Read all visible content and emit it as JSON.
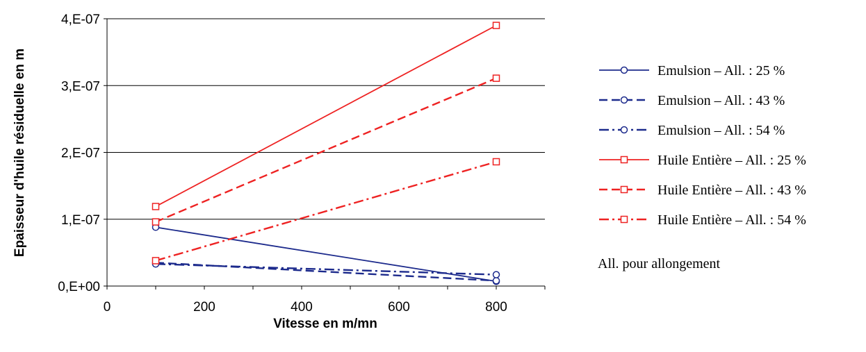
{
  "chart_data": {
    "type": "line",
    "xlabel": "Vitesse en m/mn",
    "ylabel": "Epaisseur d'huile résiduelle en m",
    "xlim": [
      0,
      900
    ],
    "ylim": [
      0,
      4e-07
    ],
    "x_ticks": [
      0,
      200,
      400,
      600,
      800
    ],
    "x_tick_labels": [
      "0",
      "200",
      "400",
      "600",
      "800"
    ],
    "y_ticks": [
      0,
      1e-07,
      2e-07,
      3e-07,
      4e-07
    ],
    "y_tick_labels": [
      "0,E+00",
      "1,E-07",
      "2,E-07",
      "3,E-07",
      "4,E-07"
    ],
    "grid": "horizontal",
    "legend_position": "right",
    "series": [
      {
        "name": "Emulsion – All. : 25 %",
        "x": [
          100,
          800
        ],
        "y": [
          8.8e-08,
          7e-09
        ],
        "color": "#1c2a8c",
        "dash": "solid",
        "marker": "circle"
      },
      {
        "name": "Emulsion – All. : 43 %",
        "x": [
          100,
          800
        ],
        "y": [
          3.5e-08,
          8e-09
        ],
        "color": "#1c2a8c",
        "dash": "dashed",
        "marker": "circle"
      },
      {
        "name": "Emulsion – All. : 54 %",
        "x": [
          100,
          800
        ],
        "y": [
          3.3e-08,
          1.7e-08
        ],
        "color": "#1c2a8c",
        "dash": "dashdot",
        "marker": "circle"
      },
      {
        "name": "Huile Entière – All. : 25 %",
        "x": [
          100,
          800
        ],
        "y": [
          1.19e-07,
          3.9e-07
        ],
        "color": "#ee2222",
        "dash": "solid",
        "marker": "square"
      },
      {
        "name": "Huile Entière – All. : 43 %",
        "x": [
          100,
          800
        ],
        "y": [
          9.6e-08,
          3.11e-07
        ],
        "color": "#ee2222",
        "dash": "dashed",
        "marker": "square"
      },
      {
        "name": "Huile Entière – All. : 54 %",
        "x": [
          100,
          800
        ],
        "y": [
          3.8e-08,
          1.86e-07
        ],
        "color": "#ee2222",
        "dash": "dashdot",
        "marker": "square"
      }
    ],
    "note": "All. pour allongement"
  }
}
